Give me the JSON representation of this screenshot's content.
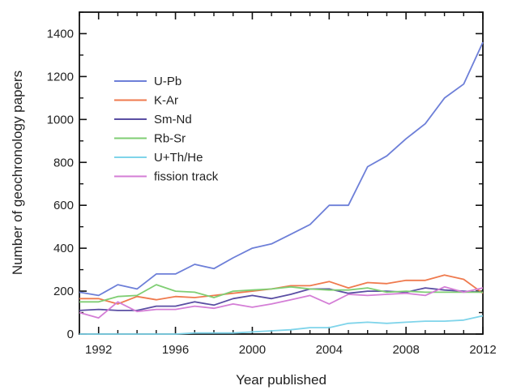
{
  "chart_data": {
    "type": "line",
    "xlabel": "Year published",
    "ylabel": "Number of geochronology papers",
    "xlim": [
      1991,
      2012
    ],
    "ylim": [
      0,
      1500
    ],
    "x_ticks": [
      1992,
      1996,
      2000,
      2004,
      2008,
      2012
    ],
    "y_ticks": [
      0,
      200,
      400,
      600,
      800,
      1000,
      1200,
      1400
    ],
    "x_minor_step": 1,
    "y_minor_step": 100,
    "grid": false,
    "legend_position": "upper-left",
    "x": [
      1991,
      1992,
      1993,
      1994,
      1995,
      1996,
      1997,
      1998,
      1999,
      2000,
      2001,
      2002,
      2003,
      2004,
      2005,
      2006,
      2007,
      2008,
      2009,
      2010,
      2011,
      2012
    ],
    "series": [
      {
        "name": "U-Pb",
        "color": "#6d7fd8",
        "values": [
          195,
          180,
          230,
          210,
          280,
          280,
          325,
          305,
          355,
          400,
          420,
          465,
          510,
          600,
          600,
          780,
          830,
          910,
          980,
          1100,
          1165,
          1360
        ]
      },
      {
        "name": "K-Ar",
        "color": "#ef7a4e",
        "values": [
          165,
          165,
          140,
          175,
          160,
          175,
          170,
          180,
          190,
          200,
          210,
          225,
          225,
          245,
          215,
          240,
          235,
          250,
          250,
          275,
          255,
          190
        ]
      },
      {
        "name": "Sm-Nd",
        "color": "#5a4ea3",
        "values": [
          110,
          115,
          110,
          110,
          130,
          130,
          150,
          135,
          165,
          180,
          165,
          185,
          210,
          210,
          190,
          200,
          200,
          195,
          215,
          205,
          200,
          195
        ]
      },
      {
        "name": "Rb-Sr",
        "color": "#7fce73",
        "values": [
          150,
          150,
          175,
          180,
          230,
          200,
          195,
          170,
          200,
          205,
          210,
          220,
          210,
          205,
          205,
          215,
          195,
          200,
          195,
          195,
          195,
          195
        ]
      },
      {
        "name": "U+Th/He",
        "color": "#7fd4ea",
        "values": [
          0,
          0,
          0,
          0,
          0,
          0,
          5,
          5,
          5,
          10,
          15,
          20,
          30,
          30,
          50,
          55,
          50,
          55,
          60,
          60,
          65,
          85
        ]
      },
      {
        "name": "fission track",
        "color": "#d47ed6",
        "values": [
          100,
          75,
          150,
          105,
          115,
          115,
          130,
          120,
          140,
          125,
          140,
          160,
          180,
          140,
          185,
          180,
          185,
          190,
          180,
          220,
          195,
          215
        ]
      }
    ]
  }
}
